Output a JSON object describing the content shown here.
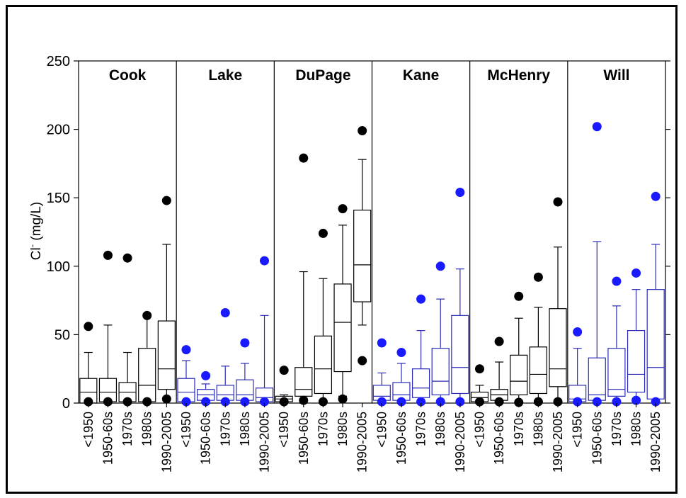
{
  "chart_data": {
    "type": "box",
    "ylabel_main": "Cl",
    "ylabel_sup": "-",
    "ylabel_unit": " (mg/L)",
    "ylim": [
      0,
      250
    ],
    "yticks": [
      "0",
      "50",
      "100",
      "150",
      "200",
      "250"
    ],
    "categories": [
      "<1950",
      "1950-60s",
      "1970s",
      "1980s",
      "1990-2005"
    ],
    "colors": {
      "black": "#000000",
      "blue": "#1a1aff",
      "box_blue": "#2b2bb8"
    },
    "panels": [
      {
        "name": "Cook",
        "color": "black",
        "boxes": [
          {
            "min": 0,
            "q1": 0,
            "median": 8,
            "q3": 18,
            "max": 37,
            "outliers": [
              56,
              1
            ]
          },
          {
            "min": 0,
            "q1": 1,
            "median": 8,
            "q3": 18,
            "max": 57,
            "outliers": [
              108,
              1
            ]
          },
          {
            "min": 0,
            "q1": 1,
            "median": 8,
            "q3": 15,
            "max": 37,
            "outliers": [
              106,
              1
            ]
          },
          {
            "min": 0,
            "q1": 1,
            "median": 13,
            "q3": 40,
            "max": 63,
            "outliers": [
              64,
              1
            ]
          },
          {
            "min": 4,
            "q1": 10,
            "median": 25,
            "q3": 60,
            "max": 116,
            "outliers": [
              148,
              3
            ]
          }
        ]
      },
      {
        "name": "Lake",
        "color": "blue",
        "boxes": [
          {
            "min": 0,
            "q1": 1,
            "median": 8,
            "q3": 18,
            "max": 31,
            "outliers": [
              39,
              1
            ]
          },
          {
            "min": 0,
            "q1": 2,
            "median": 6,
            "q3": 10,
            "max": 14,
            "outliers": [
              20,
              1
            ]
          },
          {
            "min": 0,
            "q1": 2,
            "median": 6,
            "q3": 13,
            "max": 27,
            "outliers": [
              66,
              1
            ]
          },
          {
            "min": 0,
            "q1": 2,
            "median": 6,
            "q3": 17,
            "max": 29,
            "outliers": [
              44,
              1
            ]
          },
          {
            "min": 0,
            "q1": 1,
            "median": 4,
            "q3": 11,
            "max": 64,
            "outliers": [
              104,
              1
            ]
          }
        ]
      },
      {
        "name": "DuPage",
        "color": "black",
        "boxes": [
          {
            "min": 0,
            "q1": 1,
            "median": 3,
            "q3": 5,
            "max": 6,
            "outliers": [
              24,
              1
            ]
          },
          {
            "min": 0,
            "q1": 5,
            "median": 10,
            "q3": 26,
            "max": 96,
            "outliers": [
              179,
              2
            ]
          },
          {
            "min": 0,
            "q1": 7,
            "median": 25,
            "q3": 49,
            "max": 91,
            "outliers": [
              124,
              1
            ]
          },
          {
            "min": 5,
            "q1": 23,
            "median": 59,
            "q3": 87,
            "max": 130,
            "outliers": [
              142,
              3
            ]
          },
          {
            "min": 57,
            "q1": 74,
            "median": 101,
            "q3": 141,
            "max": 178,
            "outliers": [
              199,
              31
            ]
          }
        ]
      },
      {
        "name": "Kane",
        "color": "blue",
        "boxes": [
          {
            "min": 0,
            "q1": 2,
            "median": 5,
            "q3": 13,
            "max": 22,
            "outliers": [
              44,
              1
            ]
          },
          {
            "min": 0,
            "q1": 2,
            "median": 6,
            "q3": 15,
            "max": 29,
            "outliers": [
              37,
              1
            ]
          },
          {
            "min": 0,
            "q1": 4,
            "median": 11,
            "q3": 25,
            "max": 53,
            "outliers": [
              76,
              1
            ]
          },
          {
            "min": 0,
            "q1": 6,
            "median": 16,
            "q3": 40,
            "max": 76,
            "outliers": [
              100,
              1
            ]
          },
          {
            "min": 0,
            "q1": 7,
            "median": 26,
            "q3": 64,
            "max": 98,
            "outliers": [
              154,
              1
            ]
          }
        ]
      },
      {
        "name": "McHenry",
        "color": "black",
        "boxes": [
          {
            "min": 0,
            "q1": 1,
            "median": 4,
            "q3": 8,
            "max": 13,
            "outliers": [
              25,
              1
            ]
          },
          {
            "min": 0,
            "q1": 2,
            "median": 6,
            "q3": 10,
            "max": 30,
            "outliers": [
              45,
              1
            ]
          },
          {
            "min": 0,
            "q1": 6,
            "median": 16,
            "q3": 35,
            "max": 62,
            "outliers": [
              78,
              0
            ]
          },
          {
            "min": 0,
            "q1": 7,
            "median": 21,
            "q3": 41,
            "max": 70,
            "outliers": [
              92,
              1
            ]
          },
          {
            "min": 2,
            "q1": 12,
            "median": 25,
            "q3": 69,
            "max": 114,
            "outliers": [
              147,
              1
            ]
          }
        ]
      },
      {
        "name": "Will",
        "color": "blue",
        "boxes": [
          {
            "min": 0,
            "q1": 1,
            "median": 3,
            "q3": 13,
            "max": 40,
            "outliers": [
              52,
              1
            ]
          },
          {
            "min": 0,
            "q1": 2,
            "median": 6,
            "q3": 33,
            "max": 118,
            "outliers": [
              202,
              1
            ]
          },
          {
            "min": 0,
            "q1": 5,
            "median": 10,
            "q3": 40,
            "max": 71,
            "outliers": [
              89,
              1
            ]
          },
          {
            "min": 0,
            "q1": 8,
            "median": 21,
            "q3": 53,
            "max": 83,
            "outliers": [
              95,
              2
            ]
          },
          {
            "min": 0,
            "q1": 3,
            "median": 26,
            "q3": 83,
            "max": 116,
            "outliers": [
              151,
              1
            ]
          }
        ]
      }
    ]
  }
}
